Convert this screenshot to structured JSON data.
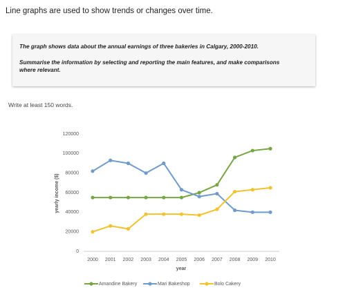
{
  "heading": "Line graphs are used to show trends or changes over time.",
  "prompt": {
    "line1": "The graph shows data about the annual earnings of three bakeries in Calgary, 2000-2010.",
    "line2": "Summarise the information by selecting and reporting the main features, and make comparisons where relevant."
  },
  "instruction": "Write at least 150 words.",
  "chart_data": {
    "type": "line",
    "x_label": "year",
    "y_label": "yearly income ($)",
    "categories": [
      "2000",
      "2001",
      "2002",
      "2003",
      "2004",
      "2005",
      "2006",
      "2007",
      "2008",
      "2009",
      "2010"
    ],
    "ylim": [
      0,
      120000
    ],
    "yticks": [
      0,
      20000,
      40000,
      60000,
      80000,
      100000,
      120000
    ],
    "legend": "bottom",
    "series": [
      {
        "name": "Amandine Bakery",
        "color": "#77a543",
        "values": [
          55000,
          55000,
          55000,
          55000,
          55000,
          55000,
          60000,
          68000,
          96000,
          103000,
          105000
        ]
      },
      {
        "name": "Mari Bakeshop",
        "color": "#6f9bcb",
        "values": [
          82000,
          93000,
          90000,
          80000,
          90000,
          63000,
          56000,
          59000,
          42000,
          40000,
          40000
        ]
      },
      {
        "name": "Bolo Cakery",
        "color": "#f2c12e",
        "values": [
          20000,
          26000,
          23000,
          38000,
          38000,
          38000,
          37000,
          43000,
          61000,
          63000,
          65000
        ]
      }
    ]
  }
}
